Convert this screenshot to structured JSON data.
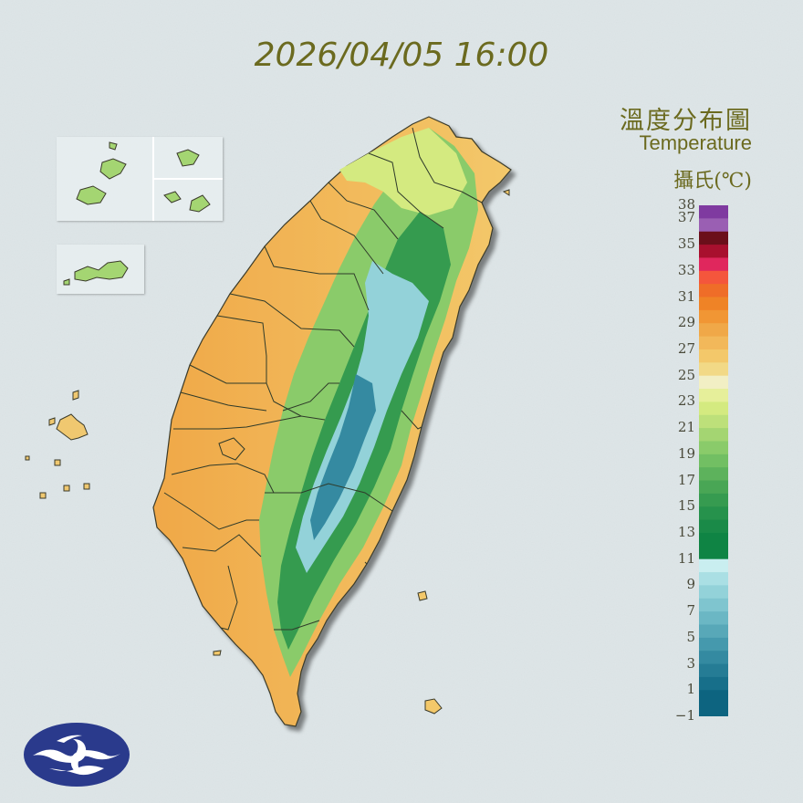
{
  "header": {
    "timestamp": "2026/04/05 16:00"
  },
  "legend": {
    "title": "溫度分布圖",
    "subtitle": "Temperature",
    "unit": "攝氏(℃)",
    "tick_labels": [
      "38",
      "37",
      "35",
      "33",
      "31",
      "29",
      "27",
      "25",
      "23",
      "21",
      "19",
      "17",
      "15",
      "13",
      "11",
      "9",
      "7",
      "5",
      "3",
      "1",
      "−1"
    ],
    "bands": [
      {
        "min": 37,
        "max": 38,
        "color": "#7f3aa0"
      },
      {
        "min": 36,
        "max": 37,
        "color": "#9a5fb3"
      },
      {
        "min": 35,
        "max": 36,
        "color": "#6b0f1a"
      },
      {
        "min": 34,
        "max": 35,
        "color": "#a8102e"
      },
      {
        "min": 33,
        "max": 34,
        "color": "#e0275d"
      },
      {
        "min": 32,
        "max": 33,
        "color": "#f4563c"
      },
      {
        "min": 31,
        "max": 32,
        "color": "#ef6d28"
      },
      {
        "min": 30,
        "max": 31,
        "color": "#ef8326"
      },
      {
        "min": 29,
        "max": 30,
        "color": "#f19634"
      },
      {
        "min": 28,
        "max": 29,
        "color": "#f0a848"
      },
      {
        "min": 27,
        "max": 28,
        "color": "#f2b85a"
      },
      {
        "min": 26,
        "max": 27,
        "color": "#f3c86a"
      },
      {
        "min": 25,
        "max": 26,
        "color": "#f2d986"
      },
      {
        "min": 24,
        "max": 25,
        "color": "#f2efc4"
      },
      {
        "min": 23,
        "max": 24,
        "color": "#e6ef9a"
      },
      {
        "min": 22,
        "max": 23,
        "color": "#d4ea80"
      },
      {
        "min": 21,
        "max": 22,
        "color": "#bde07a"
      },
      {
        "min": 20,
        "max": 21,
        "color": "#a4d572"
      },
      {
        "min": 19,
        "max": 20,
        "color": "#8acb6a"
      },
      {
        "min": 18,
        "max": 19,
        "color": "#72bf63"
      },
      {
        "min": 17,
        "max": 18,
        "color": "#5db25c"
      },
      {
        "min": 16,
        "max": 17,
        "color": "#49a655"
      },
      {
        "min": 15,
        "max": 16,
        "color": "#369b50"
      },
      {
        "min": 14,
        "max": 15,
        "color": "#26924c"
      },
      {
        "min": 13,
        "max": 14,
        "color": "#1a8a48"
      },
      {
        "min": 11,
        "max": 13,
        "color": "#0f8444"
      },
      {
        "min": 10,
        "max": 11,
        "color": "#c9eef0"
      },
      {
        "min": 9,
        "max": 10,
        "color": "#aadfe4"
      },
      {
        "min": 8,
        "max": 9,
        "color": "#93d2d9"
      },
      {
        "min": 7,
        "max": 8,
        "color": "#7fc5cf"
      },
      {
        "min": 6,
        "max": 7,
        "color": "#6bb7c4"
      },
      {
        "min": 5,
        "max": 6,
        "color": "#58a8b8"
      },
      {
        "min": 4,
        "max": 5,
        "color": "#4599ad"
      },
      {
        "min": 3,
        "max": 4,
        "color": "#348aa1"
      },
      {
        "min": 2,
        "max": 3,
        "color": "#257c95"
      },
      {
        "min": 1,
        "max": 2,
        "color": "#176f8a"
      },
      {
        "min": -1,
        "max": 1,
        "color": "#0d6480"
      }
    ]
  },
  "map": {
    "main_island": "Taiwan",
    "colors": {
      "lowland": "#f0a848",
      "coast_warm": "#f3c86a",
      "mid": "#bde07a",
      "forest": "#49a655",
      "high": "#93d2d9",
      "summit": "#348aa1",
      "border": "#2f3a2a"
    }
  },
  "logo": {
    "name": "cwa-logo-icon",
    "colors": {
      "disc": "#2a3a8c",
      "wave": "#ffffff"
    }
  }
}
